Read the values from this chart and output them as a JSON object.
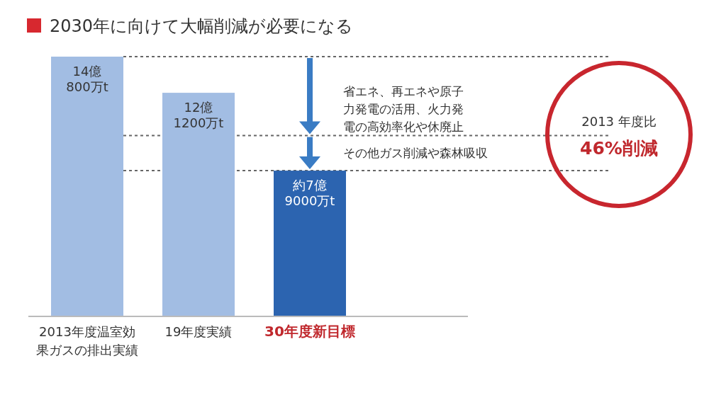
{
  "chart_data": {
    "type": "bar",
    "title": "2030年に向けて大幅削減が必要になる",
    "categories": [
      "2013年度温室効果ガスの排出実績",
      "19年度実績",
      "30年度新目標"
    ],
    "values": [
      14.08,
      12.12,
      7.9
    ],
    "colors": [
      "#a2bde3",
      "#a2bde3",
      "#2c64b0"
    ],
    "value_labels": [
      "14億\n800万t",
      "12億\n1200万t",
      "約7億\n9000万t"
    ],
    "relative": false,
    "ref_lines": [
      {
        "axis": "y",
        "value": 14.08,
        "line_style": "dotted",
        "color": "#666666"
      },
      {
        "axis": "y",
        "value": 9.8,
        "line_style": "dotted",
        "color": "#666666"
      },
      {
        "axis": "y",
        "value": 7.9,
        "line_style": "dotted",
        "color": "#666666"
      }
    ],
    "annotations": [
      "省エネ、再エネや原子力発電の活用、火力発電の高効率化や休廃止",
      "その他ガス削減や森林吸収",
      "2013 年度比",
      "46%削減"
    ]
  }
}
